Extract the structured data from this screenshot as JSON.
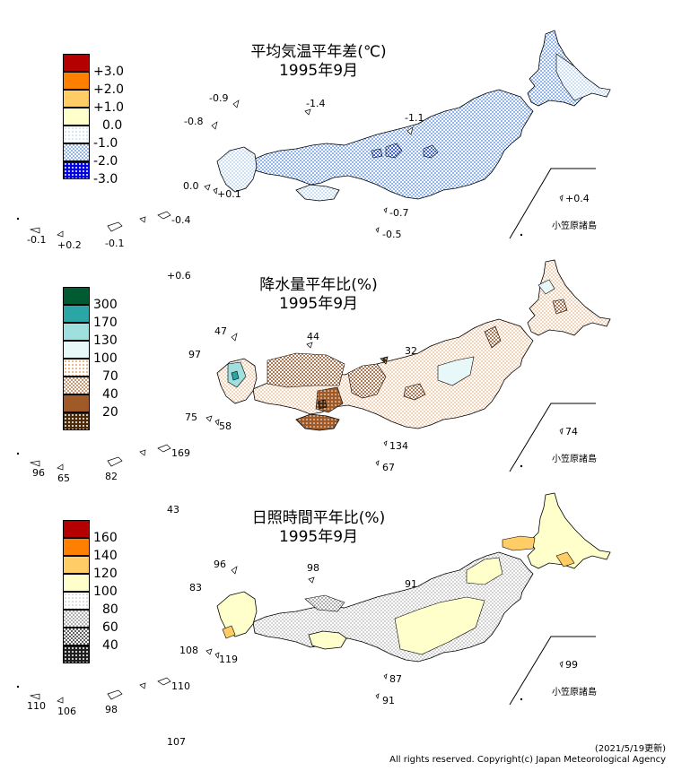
{
  "panels": [
    {
      "title_line1": "平均気温平年差(℃)",
      "title_line2": "1995年9月",
      "legend": [
        {
          "label": "+3.0",
          "color": "#b40000"
        },
        {
          "label": "+2.0",
          "color": "#ff8000"
        },
        {
          "label": "+1.0",
          "color": "#ffcc66"
        },
        {
          "label": "0.0",
          "color": "#ffffcc"
        },
        {
          "label": "-1.0",
          "color": "#e0f0ff"
        },
        {
          "label": "-2.0",
          "color": "#8fb6ee"
        },
        {
          "label": "-3.0",
          "color": "#0000e0"
        }
      ],
      "values": [
        "-0.9",
        "-1.4",
        "-0.8",
        "-1.1",
        "0.0",
        "+0.1",
        "+0.4",
        "-0.7",
        "-0.5",
        "-0.4",
        "-0.1",
        "+0.2",
        "-0.1",
        "+0.6"
      ],
      "bonin_label": "小笠原諸島"
    },
    {
      "title_line1": "降水量平年比(%)",
      "title_line2": "1995年9月",
      "legend": [
        {
          "label": "300",
          "color": "#005a32"
        },
        {
          "label": "170",
          "color": "#2aa6a6"
        },
        {
          "label": "130",
          "color": "#9fe0de"
        },
        {
          "label": "100",
          "color": "#e8f8f8"
        },
        {
          "label": "70",
          "color": "#fae6c8"
        },
        {
          "label": "40",
          "color": "#e8b890"
        },
        {
          "label": "20",
          "color": "#a05a28"
        }
      ],
      "values": [
        "47",
        "44",
        "97",
        "32",
        "75",
        "58",
        "74",
        "134",
        "67",
        "96",
        "65",
        "82",
        "169",
        "43"
      ],
      "bonin_label": "小笠原諸島"
    },
    {
      "title_line1": "日照時間平年比(%)",
      "title_line2": "1995年9月",
      "legend": [
        {
          "label": "160",
          "color": "#b40000"
        },
        {
          "label": "140",
          "color": "#ff8000"
        },
        {
          "label": "120",
          "color": "#ffcc66"
        },
        {
          "label": "100",
          "color": "#ffffcc"
        },
        {
          "label": "80",
          "color": "#ffffff"
        },
        {
          "label": "60",
          "color": "#c8c8c8"
        },
        {
          "label": "40",
          "color": "#808080"
        }
      ],
      "values": [
        "96",
        "98",
        "83",
        "91",
        "108",
        "119",
        "99",
        "87",
        "91",
        "110",
        "110",
        "106",
        "98",
        "107"
      ],
      "bonin_label": "小笠原諸島"
    }
  ],
  "footer": {
    "updated": "(2021/5/19更新)",
    "copyright": "All rights reserved. Copyright(c) Japan Meteorological Agency"
  }
}
